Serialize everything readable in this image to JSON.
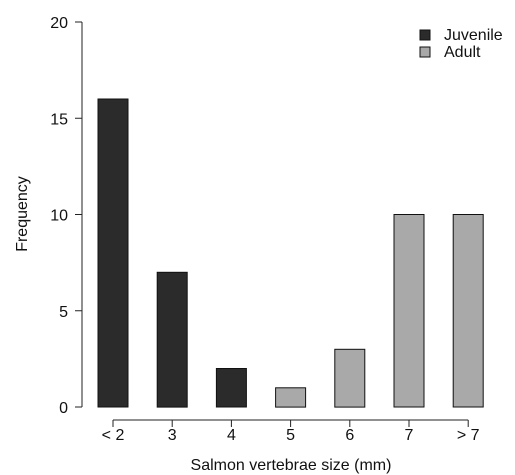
{
  "chart_data": {
    "type": "bar",
    "title": "",
    "xlabel": "Salmon vertebrae size (mm)",
    "ylabel": "Frequency",
    "categories": [
      "< 2",
      "3",
      "4",
      "5",
      "6",
      "7",
      "> 7"
    ],
    "values": [
      16,
      7,
      2,
      1,
      3,
      10,
      10
    ],
    "groups": [
      "Juvenile",
      "Juvenile",
      "Juvenile",
      "Adult",
      "Adult",
      "Adult",
      "Adult"
    ],
    "ylim": [
      0,
      20
    ],
    "yticks": [
      0,
      5,
      10,
      15,
      20
    ],
    "grid": false,
    "legend": {
      "placement": "top-right",
      "entries": [
        {
          "name": "Juvenile",
          "color": "#2b2b2b"
        },
        {
          "name": "Adult",
          "color": "#a9a9a9"
        }
      ]
    },
    "colors": {
      "Juvenile": "#2b2b2b",
      "Adult": "#a9a9a9",
      "axis": "#222222",
      "bar_outline": "#111111"
    }
  }
}
